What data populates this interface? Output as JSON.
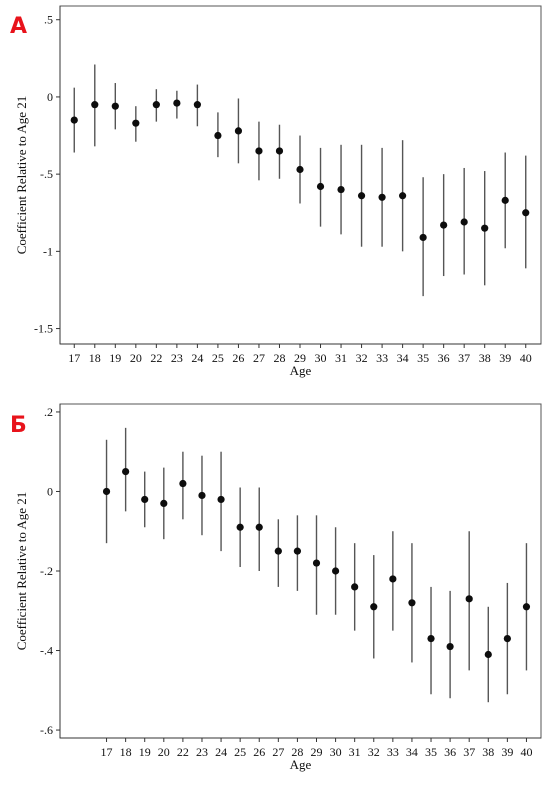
{
  "chart_data": [
    {
      "type": "scatter",
      "panel_label": "А",
      "xlabel": "Age",
      "ylabel": "Coefficient Relative to Age 21",
      "x": [
        17,
        18,
        19,
        20,
        22,
        23,
        24,
        25,
        26,
        27,
        28,
        29,
        30,
        31,
        32,
        33,
        34,
        35,
        36,
        37,
        38,
        39,
        40
      ],
      "y": [
        -0.15,
        -0.05,
        -0.06,
        -0.17,
        -0.05,
        -0.04,
        -0.05,
        -0.25,
        -0.22,
        -0.35,
        -0.35,
        -0.47,
        -0.58,
        -0.6,
        -0.64,
        -0.65,
        -0.64,
        -0.91,
        -0.83,
        -0.81,
        -0.85,
        -0.67,
        -0.75
      ],
      "ci_low": [
        -0.36,
        -0.32,
        -0.21,
        -0.29,
        -0.16,
        -0.14,
        -0.19,
        -0.39,
        -0.43,
        -0.54,
        -0.53,
        -0.69,
        -0.84,
        -0.89,
        -0.97,
        -0.97,
        -1.0,
        -1.29,
        -1.16,
        -1.15,
        -1.22,
        -0.98,
        -1.11
      ],
      "ci_high": [
        0.06,
        0.21,
        0.09,
        -0.06,
        0.05,
        0.04,
        0.08,
        -0.1,
        -0.01,
        -0.16,
        -0.18,
        -0.25,
        -0.33,
        -0.31,
        -0.31,
        -0.33,
        -0.28,
        -0.52,
        -0.5,
        -0.46,
        -0.48,
        -0.36,
        -0.38
      ],
      "ylim": [
        -1.6,
        0.55
      ],
      "yticks": [
        0.5,
        0,
        -0.5,
        -1,
        -1.5
      ],
      "ytick_labels": [
        ".5",
        "0",
        "-.5",
        "-1",
        "-1.5"
      ],
      "colors": {
        "points": "#0d0d0d",
        "ci": "#555555",
        "panel_label": "#e8131b"
      },
      "grid": false,
      "legend": "none"
    },
    {
      "type": "scatter",
      "panel_label": "Б",
      "xlabel": "Age",
      "ylabel": "Coefficient Relative to Age 21",
      "x": [
        17,
        18,
        19,
        20,
        22,
        23,
        24,
        25,
        26,
        27,
        28,
        29,
        30,
        31,
        32,
        33,
        34,
        35,
        36,
        37,
        38,
        39,
        40
      ],
      "y": [
        0.0,
        0.05,
        -0.02,
        -0.03,
        0.02,
        -0.01,
        -0.02,
        -0.09,
        -0.09,
        -0.15,
        -0.15,
        -0.18,
        -0.2,
        -0.24,
        -0.29,
        -0.22,
        -0.28,
        -0.37,
        -0.39,
        -0.27,
        -0.41,
        -0.37,
        -0.29
      ],
      "ci_low": [
        -0.13,
        -0.05,
        -0.09,
        -0.12,
        -0.07,
        -0.11,
        -0.15,
        -0.19,
        -0.2,
        -0.24,
        -0.25,
        -0.31,
        -0.31,
        -0.35,
        -0.42,
        -0.35,
        -0.43,
        -0.51,
        -0.52,
        -0.45,
        -0.53,
        -0.51,
        -0.45
      ],
      "ci_high": [
        0.13,
        0.16,
        0.05,
        0.06,
        0.1,
        0.09,
        0.1,
        0.01,
        0.01,
        -0.07,
        -0.06,
        -0.06,
        -0.09,
        -0.13,
        -0.16,
        -0.1,
        -0.13,
        -0.24,
        -0.25,
        -0.1,
        -0.29,
        -0.23,
        -0.13
      ],
      "ylim": [
        -0.62,
        0.22
      ],
      "yticks": [
        0.2,
        0,
        -0.2,
        -0.4,
        -0.6
      ],
      "ytick_labels": [
        ".2",
        "0",
        "-.2",
        "-.4",
        "-.6"
      ],
      "colors": {
        "points": "#0d0d0d",
        "ci": "#555555",
        "panel_label": "#e8131b"
      },
      "grid": false,
      "legend": "none"
    }
  ]
}
